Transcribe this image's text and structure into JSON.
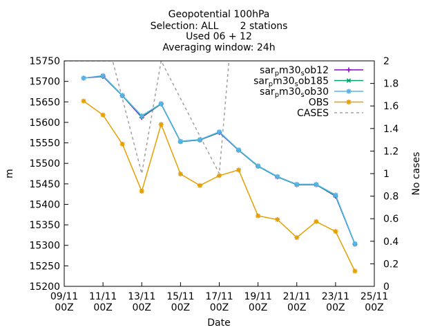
{
  "chart_data": {
    "type": "line",
    "title_lines": [
      "Geopotential 100hPa",
      "Selection: ALL       2 stations",
      "Used 06 + 12",
      "Averaging window: 24h"
    ],
    "xlabel": "Date",
    "ylabel": "m",
    "y2label": "No cases",
    "x_ticks": [
      {
        "day": 9,
        "label1": "09/11",
        "label2": "00Z"
      },
      {
        "day": 11,
        "label1": "11/11",
        "label2": "00Z"
      },
      {
        "day": 13,
        "label1": "13/11",
        "label2": "00Z"
      },
      {
        "day": 15,
        "label1": "15/11",
        "label2": "00Z"
      },
      {
        "day": 17,
        "label1": "17/11",
        "label2": "00Z"
      },
      {
        "day": 19,
        "label1": "19/11",
        "label2": "00Z"
      },
      {
        "day": 21,
        "label1": "21/11",
        "label2": "00Z"
      },
      {
        "day": 23,
        "label1": "23/11",
        "label2": "00Z"
      },
      {
        "day": 25,
        "label1": "25/11",
        "label2": "00Z"
      }
    ],
    "xlim": [
      9,
      25
    ],
    "ylim": [
      15200,
      15750
    ],
    "y_ticks": [
      15200,
      15250,
      15300,
      15350,
      15400,
      15450,
      15500,
      15550,
      15600,
      15650,
      15700,
      15750
    ],
    "y2lim": [
      0,
      2
    ],
    "y2_ticks": [
      0,
      0.2,
      0.4,
      0.6,
      0.8,
      1,
      1.2,
      1.4,
      1.6,
      1.8,
      2
    ],
    "legend_position": "top-right",
    "x": [
      10,
      11,
      12,
      13,
      14,
      15,
      16,
      17,
      18,
      19,
      20,
      21,
      22,
      23,
      24
    ],
    "series": [
      {
        "name": "sar_pm30_sob12",
        "legend_parts": [
          "sar",
          "p",
          "m30",
          "s",
          "ob12"
        ],
        "color": "#9400d3",
        "marker": "plus",
        "values": [
          15708,
          15712,
          15665,
          15612,
          15645,
          15553,
          15557,
          15575,
          15532,
          15493,
          15467,
          15448,
          15448,
          15420,
          15303
        ]
      },
      {
        "name": "sar_pm30_sob185",
        "legend_parts": [
          "sar",
          "p",
          "m30",
          "s",
          "ob185"
        ],
        "color": "#009e73",
        "marker": "cross",
        "values": [
          15708,
          15713,
          15665,
          15614,
          15645,
          15553,
          15557,
          15576,
          15532,
          15493,
          15467,
          15448,
          15448,
          15421,
          15303
        ]
      },
      {
        "name": "sar_pm30_sob30",
        "legend_parts": [
          "sar",
          "p",
          "m30",
          "s",
          "ob30"
        ],
        "color": "#56b4e9",
        "marker": "star",
        "values": [
          15708,
          15714,
          15666,
          15616,
          15646,
          15554,
          15558,
          15577,
          15533,
          15494,
          15468,
          15449,
          15449,
          15423,
          15304
        ]
      },
      {
        "name": "OBS",
        "legend_parts": [
          "OBS"
        ],
        "color": "#e69f00",
        "marker": "star",
        "values": [
          15652,
          15618,
          15547,
          15432,
          15595,
          15474,
          15446,
          15470,
          15484,
          15372,
          15363,
          15319,
          15358,
          15334,
          15237
        ]
      }
    ],
    "cases": {
      "name": "CASES",
      "color": "#a0a0a0",
      "axis": "y2",
      "x": [
        9,
        11.5,
        13,
        14,
        17,
        17.5
      ],
      "values": [
        2,
        2,
        1,
        2,
        1,
        2
      ]
    }
  }
}
